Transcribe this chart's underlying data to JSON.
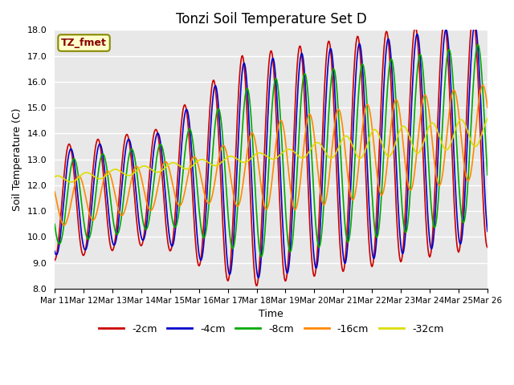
{
  "title": "Tonzi Soil Temperature Set D",
  "xlabel": "Time",
  "ylabel": "Soil Temperature (C)",
  "ylim": [
    8.0,
    18.0
  ],
  "yticks": [
    8.0,
    9.0,
    10.0,
    11.0,
    12.0,
    13.0,
    14.0,
    15.0,
    16.0,
    17.0,
    18.0
  ],
  "xtick_labels": [
    "Mar 11",
    "Mar 12",
    "Mar 13",
    "Mar 14",
    "Mar 15",
    "Mar 16",
    "Mar 17",
    "Mar 18",
    "Mar 19",
    "Mar 20",
    "Mar 21",
    "Mar 22",
    "Mar 23",
    "Mar 24",
    "Mar 25",
    "Mar 26"
  ],
  "series_colors": [
    "#cc0000",
    "#0000cc",
    "#00aa00",
    "#ff8800",
    "#dddd00"
  ],
  "series_labels": [
    "-2cm",
    "-4cm",
    "-8cm",
    "-16cm",
    "-32cm"
  ],
  "annotation_text": "TZ_fmet",
  "annotation_color": "#880000",
  "annotation_bg": "#ffffcc",
  "annotation_edge": "#888800",
  "bg_color": "#e8e8e8",
  "n_points": 600
}
